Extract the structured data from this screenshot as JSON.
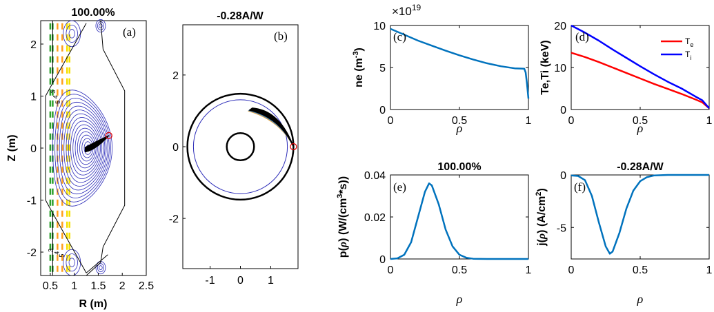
{
  "chart_data": [
    {
      "panel": "(a)",
      "type": "contour",
      "title": "100.00%",
      "xlabel": "R (m)",
      "ylabel": "Z (m)",
      "xlim": [
        0.3,
        2.5
      ],
      "ylim": [
        -2.45,
        2.45
      ],
      "xticks": [
        "0.5",
        "1",
        "1.5",
        "2",
        "2.5"
      ],
      "yticks": [
        "-2",
        "-1",
        "0",
        "1",
        "2"
      ],
      "contour_labels": [
        "3",
        "4",
        "5",
        "3",
        "4",
        "5"
      ],
      "magnetic_axis": [
        1.25,
        0.0
      ],
      "launch_point": [
        1.72,
        0.24
      ]
    },
    {
      "panel": "(b)",
      "type": "line",
      "title": "-0.28A/W",
      "xlim": [
        -1.9,
        1.9
      ],
      "ylim": [
        -3.4,
        3.4
      ],
      "xticks": [
        "-1",
        "0",
        "1"
      ],
      "yticks": [
        "-2",
        "0",
        "2"
      ],
      "outer_wall_radius": 1.75,
      "inner_wall_radius": 0.45,
      "plasma_radius": 1.55,
      "launch_point": [
        1.75,
        0.0
      ]
    },
    {
      "panel": "(c)",
      "type": "line",
      "xlabel": "ρ",
      "ylabel": "ne (m-3)",
      "exponent": "×10^19",
      "xlim": [
        0,
        1
      ],
      "ylim": [
        0,
        10
      ],
      "xticks": [
        "0",
        "0.5",
        "1"
      ],
      "yticks": [
        "0",
        "5",
        "10"
      ],
      "series": [
        {
          "color": "#0072BD",
          "x": [
            0,
            0.1,
            0.2,
            0.3,
            0.4,
            0.5,
            0.6,
            0.7,
            0.8,
            0.9,
            0.97,
            0.98,
            0.99,
            1.0
          ],
          "y": [
            9.6,
            8.9,
            8.2,
            7.6,
            7.0,
            6.45,
            5.95,
            5.5,
            5.15,
            4.9,
            4.85,
            4.4,
            3.0,
            1.3
          ]
        }
      ]
    },
    {
      "panel": "(d)",
      "type": "line",
      "xlabel": "ρ",
      "ylabel": "Te,Ti (keV)",
      "xlim": [
        0,
        1
      ],
      "ylim": [
        0,
        20
      ],
      "xticks": [
        "0",
        "0.5",
        "1"
      ],
      "yticks": [
        "0",
        "10",
        "20"
      ],
      "legend_position": "top-right",
      "series": [
        {
          "name": "T_e",
          "color": "#FF0000",
          "x": [
            0,
            0.1,
            0.2,
            0.3,
            0.4,
            0.5,
            0.6,
            0.7,
            0.8,
            0.9,
            0.95,
            1.0
          ],
          "y": [
            13.5,
            12.5,
            11.3,
            10.0,
            8.7,
            7.4,
            6.1,
            4.9,
            3.7,
            2.4,
            1.7,
            0.3
          ]
        },
        {
          "name": "T_i",
          "color": "#0000FF",
          "x": [
            0,
            0.1,
            0.2,
            0.3,
            0.4,
            0.5,
            0.6,
            0.7,
            0.8,
            0.9,
            0.95,
            1.0
          ],
          "y": [
            20.0,
            18.3,
            16.4,
            14.3,
            12.3,
            10.3,
            8.4,
            6.6,
            5.0,
            3.1,
            2.2,
            0.3
          ]
        }
      ]
    },
    {
      "panel": "(e)",
      "type": "line",
      "title": "100.00%",
      "xlabel": "ρ",
      "ylabel": "p(ρ) (W/(cm3*s))",
      "xlim": [
        0,
        1
      ],
      "ylim": [
        0,
        0.04
      ],
      "xticks": [
        "0",
        "0.5",
        "1"
      ],
      "yticks": [
        "0",
        "0.02",
        "0.04"
      ],
      "series": [
        {
          "color": "#0072BD",
          "x": [
            0,
            0.05,
            0.1,
            0.15,
            0.2,
            0.25,
            0.28,
            0.3,
            0.35,
            0.4,
            0.45,
            0.5,
            0.55,
            0.6,
            0.7,
            0.8,
            1.0
          ],
          "y": [
            0,
            0.0003,
            0.002,
            0.008,
            0.02,
            0.032,
            0.036,
            0.035,
            0.026,
            0.014,
            0.006,
            0.002,
            0.0006,
            0.0001,
            0,
            0,
            0
          ]
        }
      ]
    },
    {
      "panel": "(f)",
      "type": "line",
      "title": "-0.28A/W",
      "xlabel": "ρ",
      "ylabel": "j(ρ) (A/cm2)",
      "xlim": [
        0,
        1
      ],
      "ylim": [
        -8,
        0
      ],
      "xticks": [
        "0",
        "0.5",
        "1"
      ],
      "yticks": [
        "-5",
        "0"
      ],
      "series": [
        {
          "color": "#0072BD",
          "x": [
            0,
            0.05,
            0.1,
            0.15,
            0.2,
            0.25,
            0.28,
            0.3,
            0.35,
            0.4,
            0.45,
            0.5,
            0.55,
            0.6,
            0.7,
            0.8,
            1.0
          ],
          "y": [
            -0.05,
            -0.1,
            -0.5,
            -2.0,
            -4.5,
            -6.8,
            -7.5,
            -7.3,
            -5.5,
            -3.2,
            -1.5,
            -0.6,
            -0.2,
            -0.05,
            0,
            0,
            0
          ]
        }
      ]
    }
  ],
  "text": {
    "a_title": "100.00%",
    "a_tag": "(a)",
    "a_xlabel": "R (m)",
    "a_ylabel": "Z (m)",
    "b_title": "-0.28A/W",
    "b_tag": "(b)",
    "c_tag": "(c)",
    "c_exp_base": "×10",
    "c_exp_pow": "19",
    "c_ylabel_main": "ne (m",
    "c_ylabel_sup": "-3",
    "c_ylabel_end": ")",
    "d_tag": "(d)",
    "d_ylabel": "Te,Ti (keV)",
    "d_leg_te_main": "T",
    "d_leg_te_sub": "e",
    "d_leg_ti_main": "T",
    "d_leg_ti_sub": "i",
    "e_title": "100.00%",
    "e_tag": "(e)",
    "e_ylabel_a": "p(",
    "e_ylabel_rho": "ρ",
    "e_ylabel_b": ") (W/(cm",
    "e_ylabel_sup": "3",
    "e_ylabel_c": "*s))",
    "f_title": "-0.28A/W",
    "f_tag": "(f)",
    "f_ylabel_a": "j(",
    "f_ylabel_rho": "ρ",
    "f_ylabel_b": ") (A/cm",
    "f_ylabel_sup": "2",
    "f_ylabel_c": ")",
    "rho": "ρ"
  }
}
